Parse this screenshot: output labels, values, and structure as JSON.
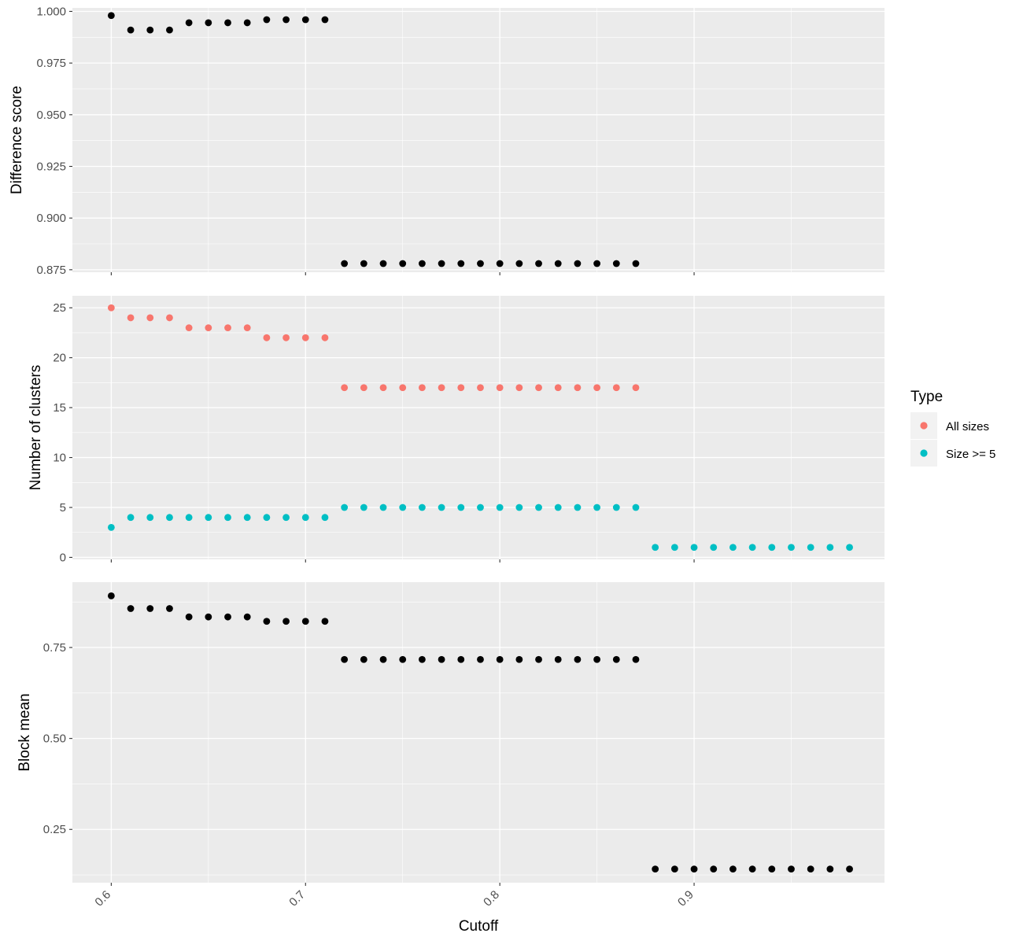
{
  "chart_data": {
    "type": "scatter",
    "x_axis": {
      "title": "Cutoff",
      "ticks": [
        0.6,
        0.7,
        0.8,
        0.9
      ],
      "tick_labels": [
        "0.6",
        "0.7",
        "0.8",
        "0.9"
      ],
      "range": [
        0.58,
        0.998
      ]
    },
    "legend": {
      "title": "Type",
      "placement": "right",
      "entries": [
        {
          "label": "All sizes",
          "color": "#F8766D"
        },
        {
          "label": "Size >= 5",
          "color": "#00BFC4"
        }
      ]
    },
    "panels": [
      {
        "ylabel": "Difference score",
        "ylim": [
          0.8738,
          1.0017
        ],
        "yticks": [
          0.875,
          0.9,
          0.925,
          0.95,
          0.975,
          1.0
        ],
        "ytick_labels": [
          "0.875",
          "0.900",
          "0.925",
          "0.950",
          "0.975",
          "1.000"
        ],
        "series": [
          {
            "color": "#000000",
            "x": [
              0.6,
              0.61,
              0.62,
              0.63,
              0.64,
              0.65,
              0.66,
              0.67,
              0.68,
              0.69,
              0.7,
              0.71,
              0.72,
              0.73,
              0.74,
              0.75,
              0.76,
              0.77,
              0.78,
              0.79,
              0.8,
              0.81,
              0.82,
              0.83,
              0.84,
              0.85,
              0.86,
              0.87
            ],
            "y": [
              0.998,
              0.991,
              0.991,
              0.991,
              0.9945,
              0.9945,
              0.9945,
              0.9945,
              0.996,
              0.996,
              0.996,
              0.996,
              0.878,
              0.878,
              0.878,
              0.878,
              0.878,
              0.878,
              0.878,
              0.878,
              0.878,
              0.878,
              0.878,
              0.878,
              0.878,
              0.878,
              0.878,
              0.878
            ]
          }
        ]
      },
      {
        "ylabel": "Number of clusters",
        "ylim": [
          -0.2,
          26.2
        ],
        "yticks": [
          0,
          5,
          10,
          15,
          20,
          25
        ],
        "ytick_labels": [
          "0",
          "5",
          "10",
          "15",
          "20",
          "25"
        ],
        "series": [
          {
            "name": "All sizes",
            "color": "#F8766D",
            "x": [
              0.6,
              0.61,
              0.62,
              0.63,
              0.64,
              0.65,
              0.66,
              0.67,
              0.68,
              0.69,
              0.7,
              0.71,
              0.72,
              0.73,
              0.74,
              0.75,
              0.76,
              0.77,
              0.78,
              0.79,
              0.8,
              0.81,
              0.82,
              0.83,
              0.84,
              0.85,
              0.86,
              0.87
            ],
            "y": [
              25,
              24,
              24,
              24,
              23,
              23,
              23,
              23,
              22,
              22,
              22,
              22,
              17,
              17,
              17,
              17,
              17,
              17,
              17,
              17,
              17,
              17,
              17,
              17,
              17,
              17,
              17,
              17
            ]
          },
          {
            "name": "Size >= 5",
            "color": "#00BFC4",
            "x": [
              0.6,
              0.61,
              0.62,
              0.63,
              0.64,
              0.65,
              0.66,
              0.67,
              0.68,
              0.69,
              0.7,
              0.71,
              0.72,
              0.73,
              0.74,
              0.75,
              0.76,
              0.77,
              0.78,
              0.79,
              0.8,
              0.81,
              0.82,
              0.83,
              0.84,
              0.85,
              0.86,
              0.87,
              0.88,
              0.89,
              0.9,
              0.91,
              0.92,
              0.93,
              0.94,
              0.95,
              0.96,
              0.97,
              0.98
            ],
            "y": [
              3,
              4,
              4,
              4,
              4,
              4,
              4,
              4,
              4,
              4,
              4,
              4,
              5,
              5,
              5,
              5,
              5,
              5,
              5,
              5,
              5,
              5,
              5,
              5,
              5,
              5,
              5,
              5,
              1,
              1,
              1,
              1,
              1,
              1,
              1,
              1,
              1,
              1,
              1
            ]
          }
        ]
      },
      {
        "ylabel": "Block mean",
        "ylim": [
          0.1035,
          0.9295
        ],
        "yticks": [
          0.25,
          0.5,
          0.75
        ],
        "ytick_labels": [
          "0.25",
          "0.50",
          "0.75"
        ],
        "series": [
          {
            "color": "#000000",
            "x": [
              0.6,
              0.61,
              0.62,
              0.63,
              0.64,
              0.65,
              0.66,
              0.67,
              0.68,
              0.69,
              0.7,
              0.71,
              0.72,
              0.73,
              0.74,
              0.75,
              0.76,
              0.77,
              0.78,
              0.79,
              0.8,
              0.81,
              0.82,
              0.83,
              0.84,
              0.85,
              0.86,
              0.87,
              0.88,
              0.89,
              0.9,
              0.91,
              0.92,
              0.93,
              0.94,
              0.95,
              0.96,
              0.97,
              0.98
            ],
            "y": [
              0.892,
              0.857,
              0.857,
              0.857,
              0.834,
              0.834,
              0.834,
              0.834,
              0.822,
              0.822,
              0.822,
              0.822,
              0.717,
              0.717,
              0.717,
              0.717,
              0.717,
              0.717,
              0.717,
              0.717,
              0.717,
              0.717,
              0.717,
              0.717,
              0.717,
              0.717,
              0.717,
              0.717,
              0.141,
              0.141,
              0.141,
              0.141,
              0.141,
              0.141,
              0.141,
              0.141,
              0.141,
              0.141,
              0.141
            ]
          }
        ]
      }
    ]
  }
}
